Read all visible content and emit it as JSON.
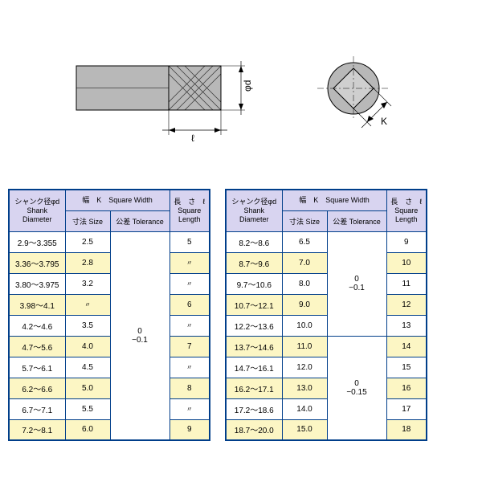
{
  "headers": {
    "shank": "シャンク径φd\nShank\nDiameter",
    "squareWidth": "幅　K　Square Width",
    "size": "寸法  Size",
    "tolerance": "公差  Tolerance",
    "length": "長　さ　ℓ\nSquare\nLength"
  },
  "tolerance": {
    "left": "0\n−0.1",
    "right1": "0\n−0.1",
    "right2": "0\n−0.15"
  },
  "ditto": "〃",
  "diagram": {
    "labels": {
      "phi_d": "φd",
      "ell": "ℓ",
      "K": "K"
    },
    "shank_fill": "#b8b8b8",
    "line_color": "#000000",
    "hatch_color": "#333333"
  },
  "leftTable": [
    {
      "shank": "2.9～3.355",
      "size": "2.5",
      "len": "5",
      "alt": false
    },
    {
      "shank": "3.36～3.795",
      "size": "2.8",
      "len": "〃",
      "alt": true
    },
    {
      "shank": "3.80～3.975",
      "size": "3.2",
      "len": "〃",
      "alt": false
    },
    {
      "shank": "3.98～4.1",
      "size": "〃",
      "len": "6",
      "alt": true
    },
    {
      "shank": "4.2～4.6",
      "size": "3.5",
      "len": "〃",
      "alt": false
    },
    {
      "shank": "4.7～5.6",
      "size": "4.0",
      "len": "7",
      "alt": true
    },
    {
      "shank": "5.7～6.1",
      "size": "4.5",
      "len": "〃",
      "alt": false
    },
    {
      "shank": "6.2～6.6",
      "size": "5.0",
      "len": "8",
      "alt": true
    },
    {
      "shank": "6.7～7.1",
      "size": "5.5",
      "len": "〃",
      "alt": false
    },
    {
      "shank": "7.2～8.1",
      "size": "6.0",
      "len": "9",
      "alt": true
    }
  ],
  "rightTable": [
    {
      "shank": "8.2～8.6",
      "size": "6.5",
      "len": "9",
      "alt": false,
      "tolGroup": 1
    },
    {
      "shank": "8.7～9.6",
      "size": "7.0",
      "len": "10",
      "alt": true,
      "tolGroup": 1
    },
    {
      "shank": "9.7～10.6",
      "size": "8.0",
      "len": "11",
      "alt": false,
      "tolGroup": 1
    },
    {
      "shank": "10.7～12.1",
      "size": "9.0",
      "len": "12",
      "alt": true,
      "tolGroup": 1
    },
    {
      "shank": "12.2～13.6",
      "size": "10.0",
      "len": "13",
      "alt": false,
      "tolGroup": 1
    },
    {
      "shank": "13.7～14.6",
      "size": "11.0",
      "len": "14",
      "alt": true,
      "tolGroup": 2
    },
    {
      "shank": "14.7～16.1",
      "size": "12.0",
      "len": "15",
      "alt": false,
      "tolGroup": 2
    },
    {
      "shank": "16.2～17.1",
      "size": "13.0",
      "len": "16",
      "alt": true,
      "tolGroup": 2
    },
    {
      "shank": "17.2～18.6",
      "size": "14.0",
      "len": "17",
      "alt": false,
      "tolGroup": 2
    },
    {
      "shank": "18.7～20.0",
      "size": "15.0",
      "len": "18",
      "alt": true,
      "tolGroup": 2
    }
  ]
}
